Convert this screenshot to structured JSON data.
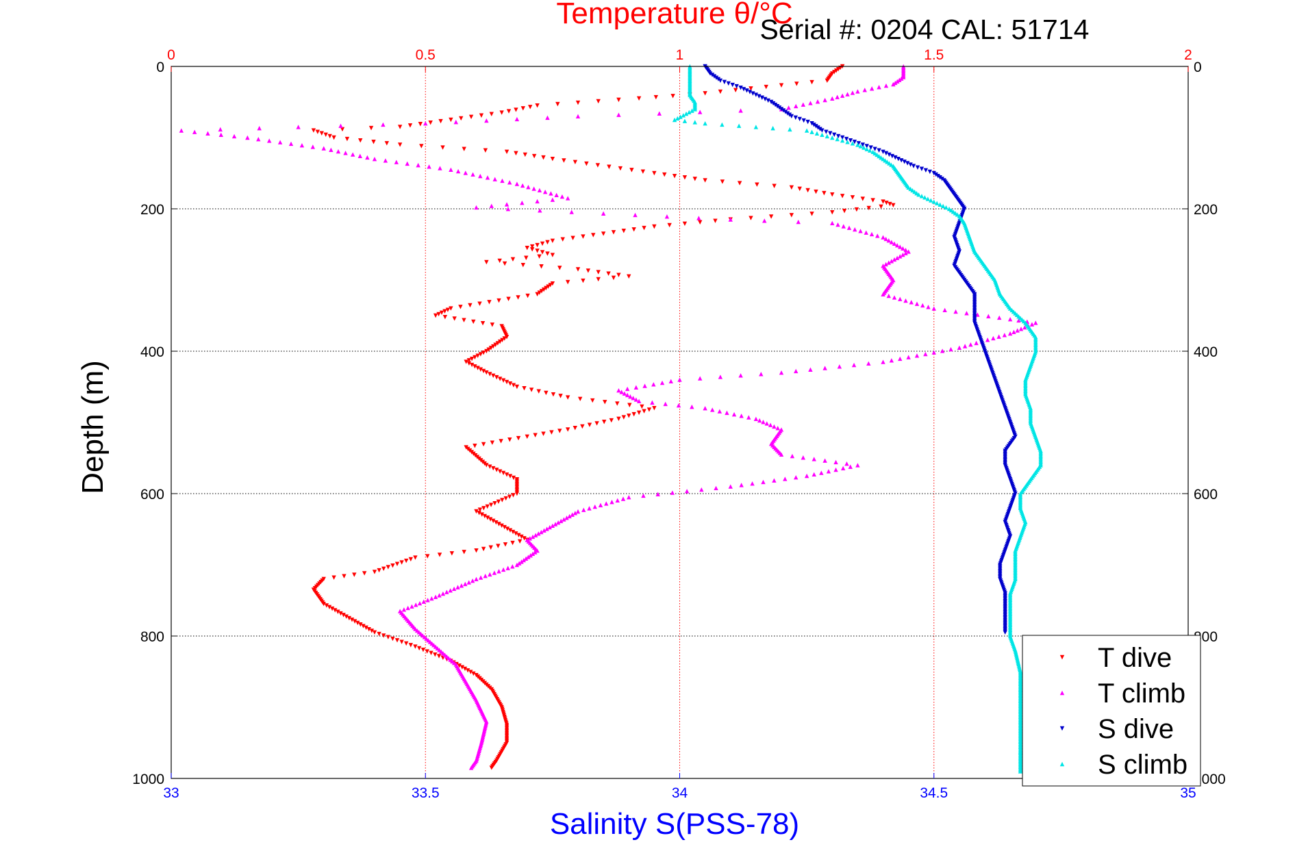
{
  "chart_data": {
    "type": "scatter",
    "title": "Temperature θ/°C",
    "subtitle": "Serial #: 0204  CAL: 51714",
    "ylabel": "Depth (m)",
    "x_top_label": "",
    "x_bottom_label": "Salinity S(PSS-78)",
    "ylim": [
      1000,
      0
    ],
    "y_reversed": true,
    "temperature_axis": {
      "range": [
        0,
        2
      ],
      "ticks": [
        "0",
        "0.5",
        "1",
        "1.5",
        "2"
      ],
      "position": "top",
      "color": "#ff0000"
    },
    "salinity_axis": {
      "range": [
        33,
        35
      ],
      "ticks": [
        "33",
        "33.5",
        "34",
        "34.5",
        "35"
      ],
      "position": "bottom",
      "color": "#0000ff"
    },
    "depth_ticks": [
      "0",
      "200",
      "400",
      "600",
      "800",
      "1000"
    ],
    "grid": true,
    "legend_position": "bottom-right",
    "series": [
      {
        "name": "T dive",
        "axis": "temperature",
        "color": "#ff0000",
        "marker": "triangle-down",
        "points": [
          [
            1.32,
            0
          ],
          [
            1.3,
            10
          ],
          [
            1.29,
            20
          ],
          [
            1.02,
            40
          ],
          [
            0.92,
            45
          ],
          [
            0.72,
            55
          ],
          [
            0.65,
            65
          ],
          [
            0.55,
            75
          ],
          [
            0.45,
            85
          ],
          [
            0.28,
            90
          ],
          [
            0.32,
            100
          ],
          [
            0.45,
            110
          ],
          [
            0.66,
            120
          ],
          [
            0.75,
            130
          ],
          [
            0.95,
            150
          ],
          [
            1.05,
            160
          ],
          [
            1.22,
            170
          ],
          [
            1.3,
            180
          ],
          [
            1.4,
            190
          ],
          [
            1.42,
            195
          ],
          [
            1.3,
            205
          ],
          [
            1.1,
            215
          ],
          [
            0.95,
            225
          ],
          [
            0.85,
            235
          ],
          [
            0.75,
            245
          ],
          [
            0.7,
            255
          ],
          [
            0.75,
            265
          ],
          [
            0.62,
            275
          ],
          [
            0.8,
            285
          ],
          [
            0.9,
            295
          ],
          [
            0.75,
            305
          ],
          [
            0.72,
            320
          ],
          [
            0.55,
            340
          ],
          [
            0.52,
            350
          ],
          [
            0.65,
            365
          ],
          [
            0.66,
            380
          ],
          [
            0.62,
            400
          ],
          [
            0.58,
            415
          ],
          [
            0.62,
            430
          ],
          [
            0.68,
            450
          ],
          [
            0.78,
            465
          ],
          [
            0.95,
            480
          ],
          [
            0.88,
            495
          ],
          [
            0.78,
            510
          ],
          [
            0.7,
            520
          ],
          [
            0.58,
            535
          ],
          [
            0.62,
            560
          ],
          [
            0.68,
            580
          ],
          [
            0.68,
            600
          ],
          [
            0.6,
            625
          ],
          [
            0.65,
            645
          ],
          [
            0.7,
            665
          ],
          [
            0.6,
            680
          ],
          [
            0.48,
            690
          ],
          [
            0.4,
            710
          ],
          [
            0.3,
            720
          ],
          [
            0.28,
            735
          ],
          [
            0.3,
            755
          ],
          [
            0.35,
            775
          ],
          [
            0.4,
            795
          ],
          [
            0.48,
            815
          ],
          [
            0.55,
            835
          ],
          [
            0.6,
            855
          ],
          [
            0.63,
            875
          ],
          [
            0.65,
            900
          ],
          [
            0.66,
            925
          ],
          [
            0.66,
            950
          ],
          [
            0.64,
            975
          ],
          [
            0.63,
            985
          ]
        ]
      },
      {
        "name": "T climb",
        "axis": "temperature",
        "color": "#ff00ff",
        "marker": "triangle-up",
        "points": [
          [
            1.44,
            0
          ],
          [
            1.44,
            15
          ],
          [
            1.42,
            25
          ],
          [
            1.35,
            35
          ],
          [
            1.3,
            45
          ],
          [
            1.2,
            60
          ],
          [
            0.8,
            70
          ],
          [
            0.5,
            80
          ],
          [
            0.25,
            85
          ],
          [
            0.02,
            90
          ],
          [
            0.15,
            100
          ],
          [
            0.3,
            115
          ],
          [
            0.4,
            130
          ],
          [
            0.55,
            145
          ],
          [
            0.68,
            165
          ],
          [
            0.78,
            185
          ],
          [
            0.6,
            198
          ],
          [
            1.1,
            215
          ],
          [
            1.3,
            220
          ],
          [
            1.4,
            240
          ],
          [
            1.45,
            260
          ],
          [
            1.4,
            280
          ],
          [
            1.42,
            300
          ],
          [
            1.4,
            320
          ],
          [
            1.5,
            340
          ],
          [
            1.65,
            355
          ],
          [
            1.7,
            360
          ],
          [
            1.65,
            375
          ],
          [
            1.55,
            395
          ],
          [
            1.4,
            415
          ],
          [
            1.2,
            430
          ],
          [
            1.0,
            440
          ],
          [
            0.88,
            455
          ],
          [
            0.92,
            470
          ],
          [
            1.05,
            480
          ],
          [
            1.15,
            495
          ],
          [
            1.2,
            510
          ],
          [
            1.18,
            530
          ],
          [
            1.2,
            545
          ],
          [
            1.35,
            560
          ],
          [
            1.25,
            575
          ],
          [
            1.1,
            590
          ],
          [
            0.9,
            605
          ],
          [
            0.8,
            625
          ],
          [
            0.75,
            645
          ],
          [
            0.7,
            665
          ],
          [
            0.72,
            680
          ],
          [
            0.68,
            700
          ],
          [
            0.6,
            720
          ],
          [
            0.52,
            745
          ],
          [
            0.45,
            765
          ],
          [
            0.48,
            790
          ],
          [
            0.52,
            815
          ],
          [
            0.56,
            840
          ],
          [
            0.58,
            865
          ],
          [
            0.6,
            890
          ],
          [
            0.62,
            920
          ],
          [
            0.61,
            950
          ],
          [
            0.6,
            975
          ],
          [
            0.59,
            985
          ]
        ]
      },
      {
        "name": "S dive",
        "axis": "salinity",
        "color": "#0000cc",
        "marker": "triangle-down",
        "points": [
          [
            34.05,
            0
          ],
          [
            34.06,
            10
          ],
          [
            34.08,
            20
          ],
          [
            34.12,
            30
          ],
          [
            34.15,
            40
          ],
          [
            34.18,
            50
          ],
          [
            34.2,
            60
          ],
          [
            34.22,
            70
          ],
          [
            34.26,
            80
          ],
          [
            34.28,
            90
          ],
          [
            34.32,
            100
          ],
          [
            34.36,
            110
          ],
          [
            34.4,
            120
          ],
          [
            34.43,
            130
          ],
          [
            34.46,
            140
          ],
          [
            34.5,
            150
          ],
          [
            34.52,
            160
          ],
          [
            34.53,
            170
          ],
          [
            34.54,
            180
          ],
          [
            34.55,
            190
          ],
          [
            34.56,
            200
          ],
          [
            34.55,
            220
          ],
          [
            34.54,
            240
          ],
          [
            34.55,
            260
          ],
          [
            34.54,
            280
          ],
          [
            34.56,
            300
          ],
          [
            34.58,
            320
          ],
          [
            34.58,
            340
          ],
          [
            34.58,
            360
          ],
          [
            34.59,
            380
          ],
          [
            34.6,
            400
          ],
          [
            34.61,
            420
          ],
          [
            34.62,
            440
          ],
          [
            34.63,
            460
          ],
          [
            34.64,
            480
          ],
          [
            34.65,
            500
          ],
          [
            34.66,
            520
          ],
          [
            34.64,
            540
          ],
          [
            34.64,
            560
          ],
          [
            34.65,
            580
          ],
          [
            34.66,
            600
          ],
          [
            34.65,
            620
          ],
          [
            34.64,
            640
          ],
          [
            34.65,
            660
          ],
          [
            34.64,
            680
          ],
          [
            34.63,
            700
          ],
          [
            34.63,
            720
          ],
          [
            34.64,
            740
          ],
          [
            34.64,
            760
          ],
          [
            34.64,
            780
          ],
          [
            34.64,
            795
          ]
        ]
      },
      {
        "name": "S climb",
        "axis": "salinity",
        "color": "#00e5e5",
        "marker": "triangle-up",
        "points": [
          [
            34.02,
            0
          ],
          [
            34.02,
            10
          ],
          [
            34.02,
            20
          ],
          [
            34.02,
            30
          ],
          [
            34.02,
            40
          ],
          [
            34.03,
            50
          ],
          [
            34.03,
            60
          ],
          [
            33.99,
            75
          ],
          [
            34.05,
            80
          ],
          [
            34.15,
            85
          ],
          [
            34.25,
            90
          ],
          [
            34.3,
            100
          ],
          [
            34.35,
            110
          ],
          [
            34.38,
            120
          ],
          [
            34.4,
            130
          ],
          [
            34.42,
            140
          ],
          [
            34.43,
            150
          ],
          [
            34.44,
            160
          ],
          [
            34.45,
            170
          ],
          [
            34.47,
            180
          ],
          [
            34.5,
            190
          ],
          [
            34.53,
            200
          ],
          [
            34.55,
            210
          ],
          [
            34.56,
            220
          ],
          [
            34.57,
            240
          ],
          [
            34.58,
            260
          ],
          [
            34.6,
            280
          ],
          [
            34.62,
            300
          ],
          [
            34.63,
            320
          ],
          [
            34.65,
            340
          ],
          [
            34.68,
            360
          ],
          [
            34.7,
            380
          ],
          [
            34.7,
            400
          ],
          [
            34.69,
            420
          ],
          [
            34.68,
            440
          ],
          [
            34.68,
            460
          ],
          [
            34.69,
            480
          ],
          [
            34.69,
            500
          ],
          [
            34.7,
            520
          ],
          [
            34.71,
            540
          ],
          [
            34.71,
            560
          ],
          [
            34.69,
            580
          ],
          [
            34.67,
            600
          ],
          [
            34.67,
            620
          ],
          [
            34.68,
            640
          ],
          [
            34.67,
            660
          ],
          [
            34.66,
            680
          ],
          [
            34.66,
            700
          ],
          [
            34.66,
            720
          ],
          [
            34.65,
            740
          ],
          [
            34.65,
            760
          ],
          [
            34.65,
            780
          ],
          [
            34.65,
            800
          ],
          [
            34.66,
            820
          ],
          [
            34.67,
            850
          ],
          [
            34.67,
            880
          ],
          [
            34.67,
            920
          ],
          [
            34.67,
            960
          ],
          [
            34.67,
            990
          ]
        ]
      }
    ]
  }
}
